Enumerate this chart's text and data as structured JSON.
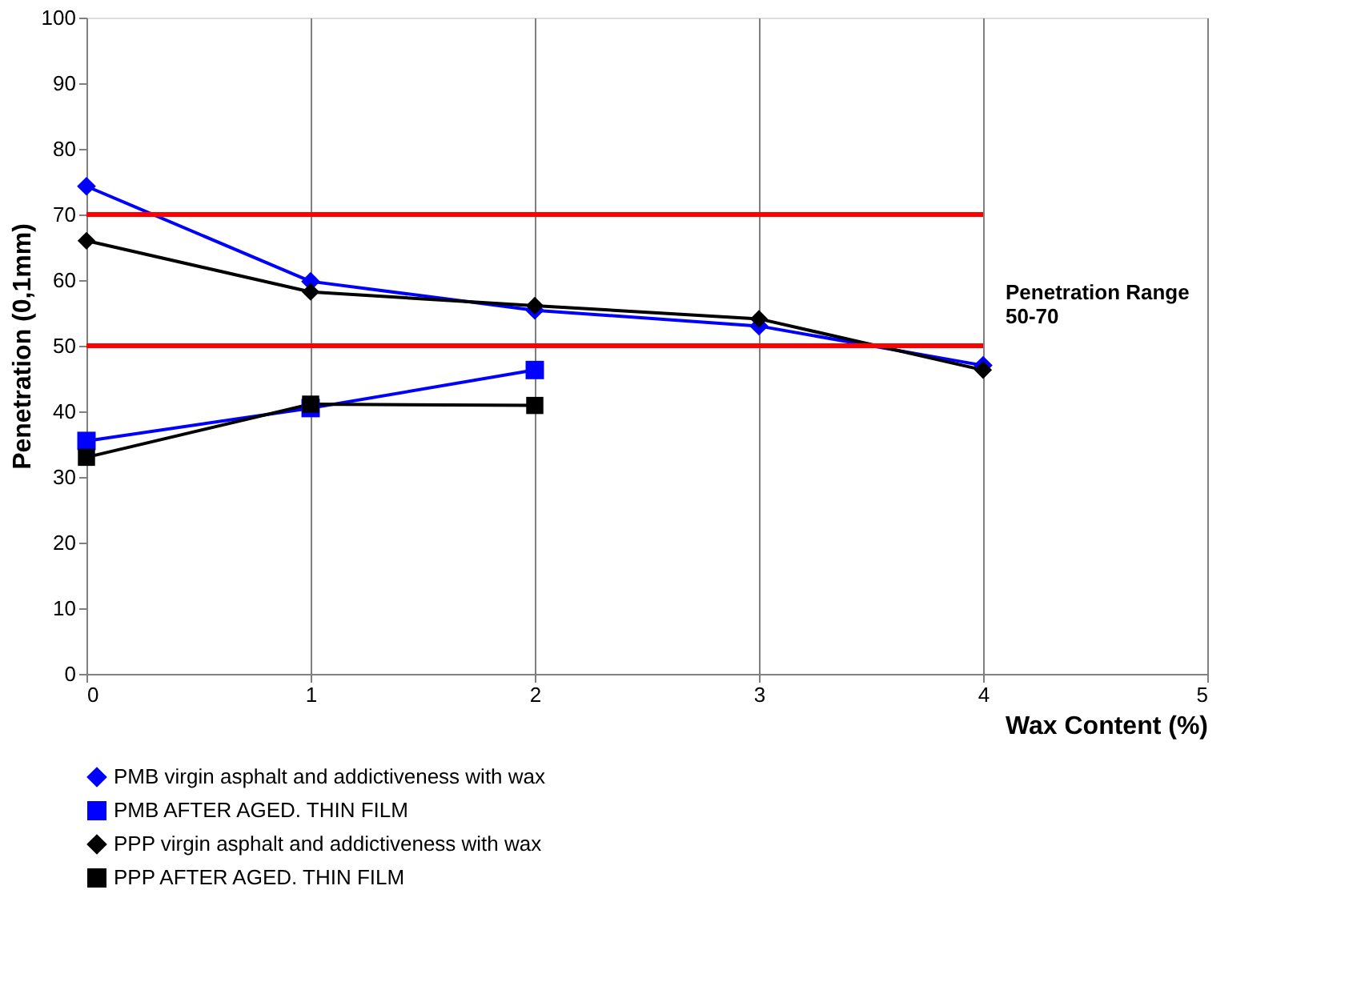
{
  "chart_data": {
    "type": "line",
    "xlabel": "Wax Content (%)",
    "ylabel": "Penetration (0,1mm)",
    "x": [
      0,
      1,
      2,
      3,
      4
    ],
    "series": [
      {
        "name": "PMB virgin asphalt and addictiveness with wax",
        "color": "#0000ff",
        "marker": "diamond",
        "values": [
          74.3,
          59.8,
          55.4,
          53,
          47
        ]
      },
      {
        "name": "PMB AFTER AGED. THIN FILM",
        "color": "#0000ff",
        "marker": "square",
        "values": [
          35.5,
          40.5,
          46.3,
          null,
          null
        ]
      },
      {
        "name": "PPP virgin asphalt and addictiveness with wax",
        "color": "#000000",
        "marker": "diamond",
        "values": [
          66,
          58.2,
          56.1,
          54.1,
          46.3
        ]
      },
      {
        "name": "PPP AFTER AGED. THIN FILM",
        "color": "#000000",
        "marker": "square",
        "values": [
          33,
          41.1,
          40.9,
          null,
          null
        ]
      }
    ],
    "xlim": [
      0,
      5
    ],
    "xticks": [
      0,
      1,
      2,
      3,
      4,
      5
    ],
    "ylim": [
      0,
      100
    ],
    "yticks": [
      0,
      10,
      20,
      30,
      40,
      50,
      60,
      70,
      80,
      90,
      100
    ],
    "ref_lines": [
      {
        "axis": "y",
        "value": 70,
        "color": "#ff0000"
      },
      {
        "axis": "y",
        "value": 50,
        "color": "#ff0000"
      }
    ],
    "annotations": [
      "Penetration Range\n     50-70"
    ],
    "grid": "x",
    "legend": "bottom",
    "line_style": "solid"
  }
}
